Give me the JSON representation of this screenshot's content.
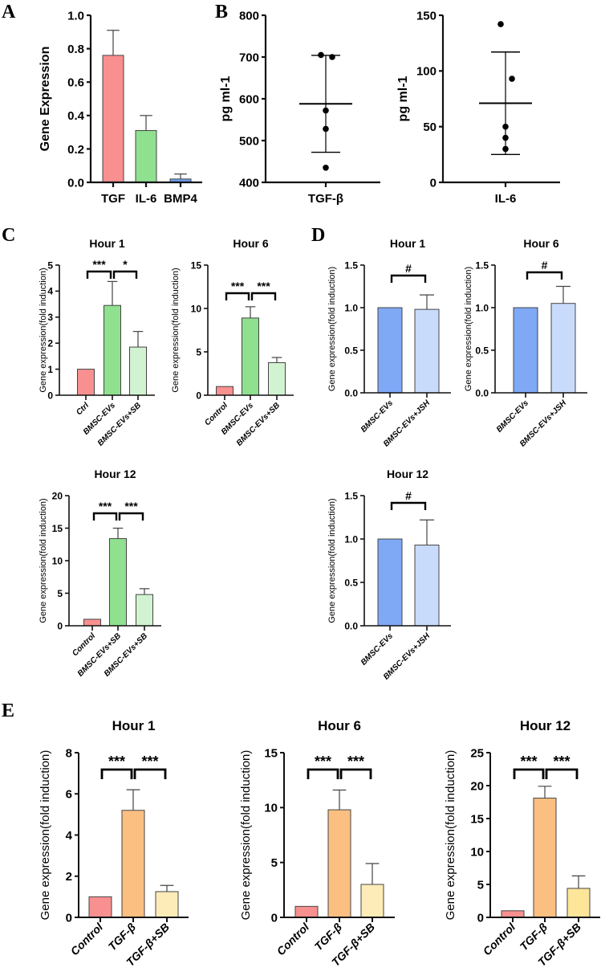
{
  "panel_labels": [
    "A",
    "B",
    "C",
    "D",
    "E"
  ],
  "chart_data": [
    {
      "id": "A",
      "type": "bar",
      "title": "",
      "ylabel": "Gene Expression",
      "ylim": [
        0,
        1.0
      ],
      "yticks": [
        "0.0",
        "0.2",
        "0.4",
        "0.6",
        "0.8",
        "1.0"
      ],
      "ytick_values": [
        0,
        0.2,
        0.4,
        0.6,
        0.8,
        1.0
      ],
      "categories": [
        "TGF",
        "IL-6",
        "BMP4"
      ],
      "values": [
        0.76,
        0.31,
        0.02
      ],
      "error_upper": [
        0.91,
        0.4,
        0.05
      ],
      "colors": [
        "#f98f8f",
        "#8fe08f",
        "#6d9ef0"
      ],
      "sig": []
    },
    {
      "id": "B1",
      "type": "scatter",
      "title": "",
      "ylabel": "pg ml-1",
      "ylim": [
        400,
        800
      ],
      "yticks": [
        "400",
        "500",
        "600",
        "700",
        "800"
      ],
      "ytick_values": [
        400,
        500,
        600,
        700,
        800
      ],
      "categories": [
        "TGF-β"
      ],
      "points": [
        705,
        700,
        572,
        528,
        435
      ],
      "mean": 588,
      "sd_low": 472,
      "sd_high": 704
    },
    {
      "id": "B2",
      "type": "scatter",
      "title": "",
      "ylabel": "pg ml-1",
      "ylim": [
        0,
        150
      ],
      "yticks": [
        "0",
        "50",
        "100",
        "150"
      ],
      "ytick_values": [
        0,
        50,
        100,
        150
      ],
      "categories": [
        "IL-6"
      ],
      "points": [
        142,
        93,
        50,
        40,
        30
      ],
      "mean": 71,
      "sd_low": 25,
      "sd_high": 117
    },
    {
      "id": "C1",
      "type": "bar",
      "title": "Hour 1",
      "ylabel": "Gene expression(fold induction)",
      "ylim": [
        0,
        5
      ],
      "yticks": [
        "0",
        "1",
        "2",
        "3",
        "4",
        "5"
      ],
      "ytick_values": [
        0,
        1,
        2,
        3,
        4,
        5
      ],
      "categories": [
        "Ctrl",
        "BMSC-EVs",
        "BMSC-EVs+SB"
      ],
      "values": [
        1,
        3.45,
        1.85
      ],
      "error_upper": [
        1,
        4.37,
        2.45
      ],
      "colors": [
        "#f99090",
        "#8fe08f",
        "#d2f3d2"
      ],
      "sig": [
        {
          "from": 0,
          "to": 1,
          "label": "***"
        },
        {
          "from": 1,
          "to": 2,
          "label": "*"
        }
      ]
    },
    {
      "id": "C6",
      "type": "bar",
      "title": "Hour 6",
      "ylabel": "Gene expression(fold induction)",
      "ylim": [
        0,
        15
      ],
      "yticks": [
        "0",
        "5",
        "10",
        "15"
      ],
      "ytick_values": [
        0,
        5,
        10,
        15
      ],
      "categories": [
        "Control",
        "BMSC-EVs",
        "BMSC-EVs+SB"
      ],
      "values": [
        1,
        8.9,
        3.75
      ],
      "error_upper": [
        1,
        10.2,
        4.35
      ],
      "colors": [
        "#f99090",
        "#8fe08f",
        "#d2f3d2"
      ],
      "sig": [
        {
          "from": 0,
          "to": 1,
          "label": "***"
        },
        {
          "from": 1,
          "to": 2,
          "label": "***"
        }
      ]
    },
    {
      "id": "C12",
      "type": "bar",
      "title": "Hour 12",
      "ylabel": "Gene expression(fold induction)",
      "ylim": [
        0,
        20
      ],
      "yticks": [
        "0",
        "5",
        "10",
        "15",
        "20"
      ],
      "ytick_values": [
        0,
        5,
        10,
        15,
        20
      ],
      "categories": [
        "Control",
        "BMSC-EVs+SB",
        "BMSC-EVs+SB"
      ],
      "values": [
        1,
        13.4,
        4.8
      ],
      "error_upper": [
        1,
        15,
        5.7
      ],
      "colors": [
        "#f99090",
        "#8fe08f",
        "#d2f3d2"
      ],
      "sig": [
        {
          "from": 0,
          "to": 1,
          "label": "***"
        },
        {
          "from": 1,
          "to": 2,
          "label": "***"
        }
      ]
    },
    {
      "id": "D1",
      "type": "bar",
      "title": "Hour 1",
      "ylabel": "Gene expression(fold induction)",
      "ylim": [
        0,
        1.5
      ],
      "yticks": [
        "0.0",
        "0.5",
        "1.0",
        "1.5"
      ],
      "ytick_values": [
        0,
        0.5,
        1.0,
        1.5
      ],
      "categories": [
        "BMSC-EVs",
        "BMSC-EVs+JSH"
      ],
      "values": [
        1,
        0.98
      ],
      "error_upper": [
        1,
        1.15
      ],
      "colors": [
        "#7fa9f5",
        "#c9dbfb"
      ],
      "sig": [
        {
          "from": 0,
          "to": 1,
          "label": "#"
        }
      ]
    },
    {
      "id": "D6",
      "type": "bar",
      "title": "Hour 6",
      "ylabel": "Gene expression(fold induction)",
      "ylim": [
        0,
        1.5
      ],
      "yticks": [
        "0.0",
        "0.5",
        "1.0",
        "1.5"
      ],
      "ytick_values": [
        0,
        0.5,
        1.0,
        1.5
      ],
      "categories": [
        "BMSC-EVs",
        "BMSC-EVs+JSH"
      ],
      "values": [
        1,
        1.05
      ],
      "error_upper": [
        1,
        1.25
      ],
      "colors": [
        "#7fa9f5",
        "#c9dbfb"
      ],
      "sig": [
        {
          "from": 0,
          "to": 1,
          "label": "#"
        }
      ]
    },
    {
      "id": "D12",
      "type": "bar",
      "title": "Hour 12",
      "ylabel": "Gene expression(fold induction)",
      "ylim": [
        0,
        1.5
      ],
      "yticks": [
        "0.0",
        "0.5",
        "1.0",
        "1.5"
      ],
      "ytick_values": [
        0,
        0.5,
        1.0,
        1.5
      ],
      "categories": [
        "BMSC-EVs",
        "BMSC-EVs+JSH"
      ],
      "values": [
        1,
        0.93
      ],
      "error_upper": [
        1,
        1.22
      ],
      "colors": [
        "#7fa9f5",
        "#c9dbfb"
      ],
      "sig": [
        {
          "from": 0,
          "to": 1,
          "label": "#"
        }
      ]
    },
    {
      "id": "E1",
      "type": "bar",
      "title": "Hour 1",
      "ylabel": "Gene expression(fold induction)",
      "ylim": [
        0,
        8
      ],
      "yticks": [
        "0",
        "2",
        "4",
        "6",
        "8"
      ],
      "ytick_values": [
        0,
        2,
        4,
        6,
        8
      ],
      "categories": [
        "Control",
        "TGF-β",
        "TGF-β+SB"
      ],
      "values": [
        1,
        5.2,
        1.25
      ],
      "error_upper": [
        1,
        6.2,
        1.55
      ],
      "colors": [
        "#f99090",
        "#fbbf82",
        "#feecb8"
      ],
      "sig": [
        {
          "from": 0,
          "to": 1,
          "label": "***"
        },
        {
          "from": 1,
          "to": 2,
          "label": "***"
        }
      ]
    },
    {
      "id": "E6",
      "type": "bar",
      "title": "Hour 6",
      "ylabel": "Gene expression(fold induction)",
      "ylim": [
        0,
        15
      ],
      "yticks": [
        "0",
        "5",
        "10",
        "15"
      ],
      "ytick_values": [
        0,
        5,
        10,
        15
      ],
      "categories": [
        "Control",
        "TGF-β",
        "TGF-β+SB"
      ],
      "values": [
        1,
        9.8,
        3.0
      ],
      "error_upper": [
        1,
        11.6,
        4.9
      ],
      "colors": [
        "#f99090",
        "#fbbf82",
        "#feecb8"
      ],
      "sig": [
        {
          "from": 0,
          "to": 1,
          "label": "***"
        },
        {
          "from": 1,
          "to": 2,
          "label": "***"
        }
      ]
    },
    {
      "id": "E12",
      "type": "bar",
      "title": "Hour 12",
      "ylabel": "Gene expression(fold induction)",
      "ylim": [
        0,
        25
      ],
      "yticks": [
        "0",
        "5",
        "10",
        "15",
        "20",
        "25"
      ],
      "ytick_values": [
        0,
        5,
        10,
        15,
        20,
        25
      ],
      "categories": [
        "Control",
        "TGF-β",
        "TGF-β+SB"
      ],
      "values": [
        1,
        18.1,
        4.4
      ],
      "error_upper": [
        1,
        19.9,
        6.3
      ],
      "colors": [
        "#f99090",
        "#fbbf82",
        "#fde59a"
      ],
      "sig": [
        {
          "from": 0,
          "to": 1,
          "label": "***"
        },
        {
          "from": 1,
          "to": 2,
          "label": "***"
        }
      ]
    }
  ]
}
